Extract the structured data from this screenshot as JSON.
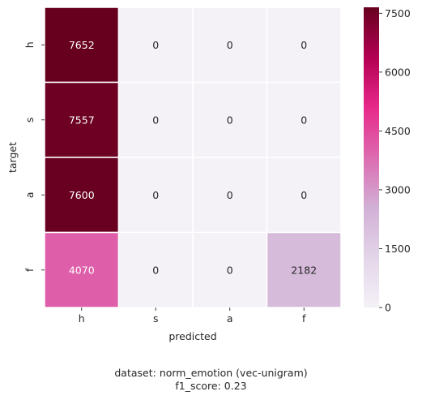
{
  "chart_data": {
    "type": "heatmap",
    "xlabel": "predicted",
    "ylabel": "target",
    "x_categories": [
      "h",
      "s",
      "a",
      "f"
    ],
    "y_categories": [
      "h",
      "s",
      "a",
      "f"
    ],
    "matrix": [
      [
        7652,
        0,
        0,
        0
      ],
      [
        7557,
        0,
        0,
        0
      ],
      [
        7600,
        0,
        0,
        0
      ],
      [
        4070,
        0,
        0,
        2182
      ]
    ],
    "colorbar": {
      "min": 0,
      "max": 7652,
      "ticks": [
        0,
        1500,
        3000,
        4500,
        6000,
        7500
      ],
      "colors": [
        "#f4f1f7",
        "#e3d5e9",
        "#d2b0d6",
        "#dc6bb0",
        "#e7298a",
        "#b20052",
        "#67001f"
      ]
    },
    "grid_line_color": "#ffffff"
  },
  "caption": {
    "line1": "dataset: norm_emotion (vec-unigram)",
    "line2": "f1_score: 0.23"
  }
}
